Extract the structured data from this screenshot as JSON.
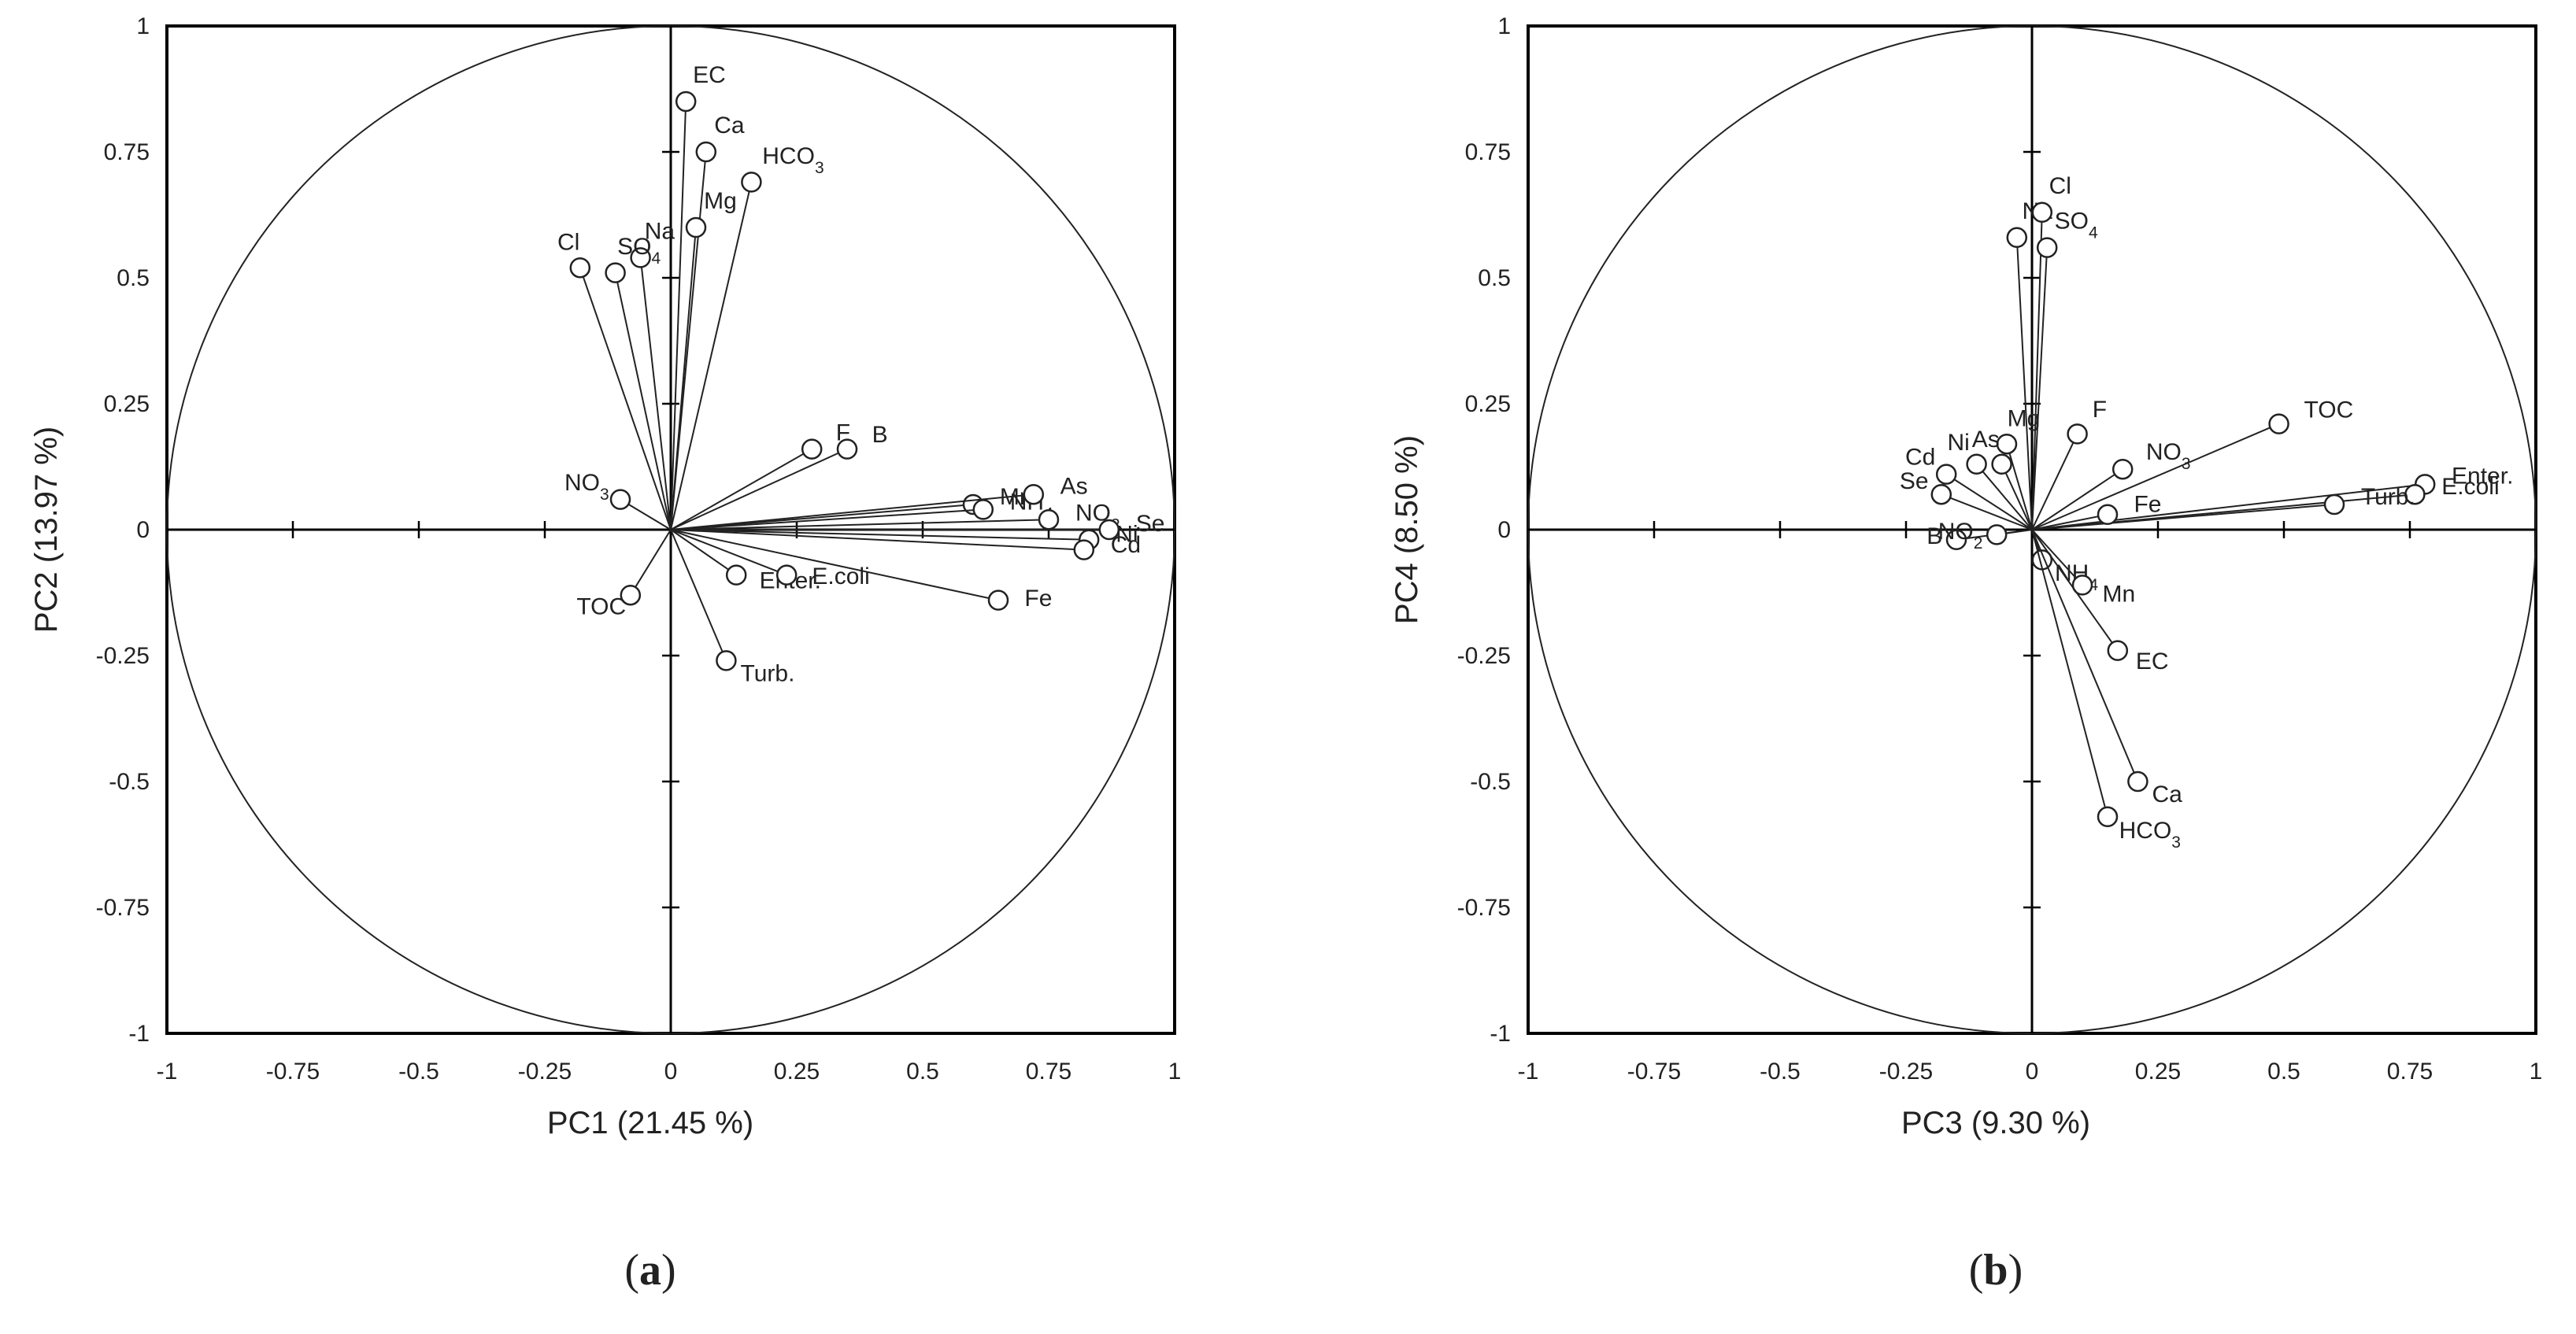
{
  "panels": [
    {
      "label_letter": "a",
      "xlabel": "PC1 (21.45 %)",
      "ylabel": "PC2 (13.97 %)"
    },
    {
      "label_letter": "b",
      "xlabel": "PC3 (9.30 %)",
      "ylabel": "PC4 (8.50 %)"
    }
  ],
  "chart_data": [
    {
      "type": "scatter",
      "subtype": "correlation-circle",
      "xlabel": "PC1 (21.45 %)",
      "ylabel": "PC2 (13.97 %)",
      "xlim": [
        -1,
        1
      ],
      "ylim": [
        -1,
        1
      ],
      "ticks": [
        "-1",
        "-0.75",
        "-0.5",
        "-0.25",
        "0",
        "0.25",
        "0.5",
        "0.75",
        "1"
      ],
      "points": [
        {
          "name": "EC",
          "x": 0.03,
          "y": 0.85
        },
        {
          "name": "Ca",
          "x": 0.07,
          "y": 0.75
        },
        {
          "name": "HCO3",
          "x": 0.16,
          "y": 0.69
        },
        {
          "name": "Mg",
          "x": 0.05,
          "y": 0.6
        },
        {
          "name": "Na",
          "x": -0.06,
          "y": 0.54
        },
        {
          "name": "SO4",
          "x": -0.11,
          "y": 0.51
        },
        {
          "name": "Cl",
          "x": -0.18,
          "y": 0.52
        },
        {
          "name": "F",
          "x": 0.28,
          "y": 0.16
        },
        {
          "name": "B",
          "x": 0.35,
          "y": 0.16
        },
        {
          "name": "Mn",
          "x": 0.6,
          "y": 0.05
        },
        {
          "name": "NH4",
          "x": 0.62,
          "y": 0.04
        },
        {
          "name": "As",
          "x": 0.72,
          "y": 0.07
        },
        {
          "name": "NO2",
          "x": 0.75,
          "y": 0.02
        },
        {
          "name": "Se",
          "x": 0.87,
          "y": 0.0
        },
        {
          "name": "Ni",
          "x": 0.83,
          "y": -0.02
        },
        {
          "name": "Cd",
          "x": 0.82,
          "y": -0.04
        },
        {
          "name": "NO3",
          "x": -0.1,
          "y": 0.06
        },
        {
          "name": "TOC",
          "x": -0.08,
          "y": -0.13
        },
        {
          "name": "Enter.",
          "x": 0.13,
          "y": -0.09
        },
        {
          "name": "E.coli",
          "x": 0.23,
          "y": -0.09
        },
        {
          "name": "Fe",
          "x": 0.65,
          "y": -0.14
        },
        {
          "name": "Turb.",
          "x": 0.11,
          "y": -0.26
        }
      ]
    },
    {
      "type": "scatter",
      "subtype": "correlation-circle",
      "xlabel": "PC3 (9.30 %)",
      "ylabel": "PC4 (8.50 %)",
      "xlim": [
        -1,
        1
      ],
      "ylim": [
        -1,
        1
      ],
      "ticks": [
        "-1",
        "-0.75",
        "-0.5",
        "-0.25",
        "0",
        "0.25",
        "0.5",
        "0.75",
        "1"
      ],
      "points": [
        {
          "name": "Na",
          "x": -0.03,
          "y": 0.58
        },
        {
          "name": "Cl",
          "x": 0.02,
          "y": 0.63
        },
        {
          "name": "SO4",
          "x": 0.03,
          "y": 0.56
        },
        {
          "name": "F",
          "x": 0.09,
          "y": 0.19
        },
        {
          "name": "NO3",
          "x": 0.18,
          "y": 0.12
        },
        {
          "name": "TOC",
          "x": 0.49,
          "y": 0.21
        },
        {
          "name": "Enter.",
          "x": 0.78,
          "y": 0.09
        },
        {
          "name": "E.coli",
          "x": 0.76,
          "y": 0.07
        },
        {
          "name": "Turb.",
          "x": 0.6,
          "y": 0.05
        },
        {
          "name": "Fe",
          "x": 0.15,
          "y": 0.03
        },
        {
          "name": "Mg",
          "x": -0.05,
          "y": 0.17
        },
        {
          "name": "As",
          "x": -0.06,
          "y": 0.13
        },
        {
          "name": "Ni",
          "x": -0.11,
          "y": 0.13
        },
        {
          "name": "Cd",
          "x": -0.17,
          "y": 0.11
        },
        {
          "name": "Se",
          "x": -0.18,
          "y": 0.07
        },
        {
          "name": "B",
          "x": -0.15,
          "y": -0.02
        },
        {
          "name": "NO2",
          "x": -0.07,
          "y": -0.01
        },
        {
          "name": "NH4",
          "x": 0.02,
          "y": -0.06
        },
        {
          "name": "Mn",
          "x": 0.1,
          "y": -0.11
        },
        {
          "name": "EC",
          "x": 0.17,
          "y": -0.24
        },
        {
          "name": "Ca",
          "x": 0.21,
          "y": -0.5
        },
        {
          "name": "HCO3",
          "x": 0.15,
          "y": -0.57
        }
      ]
    }
  ]
}
